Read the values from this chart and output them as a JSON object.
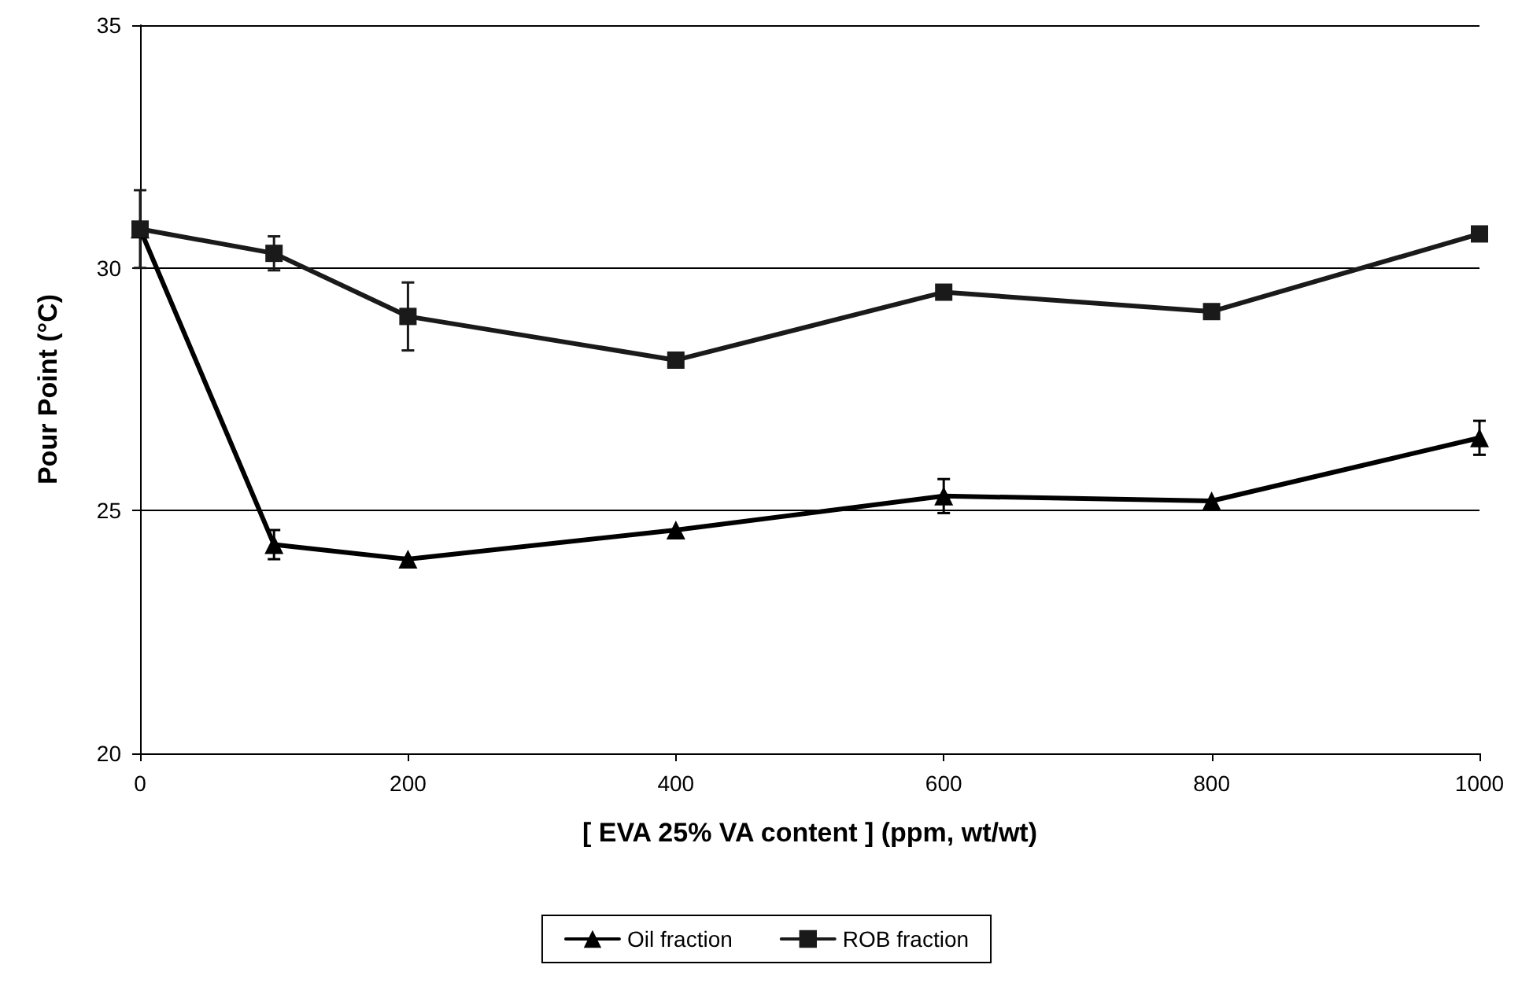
{
  "chart_data": {
    "type": "line",
    "xlabel": "[ EVA 25% VA content ] (ppm, wt/wt)",
    "ylabel": "Pour Point (°C)",
    "x": [
      0,
      100,
      200,
      400,
      600,
      800,
      1000
    ],
    "series": [
      {
        "name": "Oil fraction",
        "color": "#000000",
        "marker": "triangle",
        "values": [
          30.8,
          24.3,
          24.0,
          24.6,
          25.3,
          25.2,
          26.5
        ],
        "errors": [
          null,
          0.3,
          null,
          null,
          0.35,
          null,
          0.35
        ]
      },
      {
        "name": "ROB fraction",
        "color": "#1a1a1a",
        "marker": "square",
        "values": [
          30.8,
          30.3,
          29.0,
          28.1,
          29.5,
          29.1,
          30.7
        ],
        "errors": [
          0.8,
          0.35,
          0.7,
          null,
          null,
          null,
          null
        ]
      }
    ],
    "xlim": [
      0,
      1000
    ],
    "xticks": [
      0,
      200,
      400,
      600,
      800,
      1000
    ],
    "ylim": [
      20,
      35
    ],
    "yticks": [
      20,
      25,
      30,
      35
    ],
    "grid": "y",
    "legend": "bottom"
  }
}
